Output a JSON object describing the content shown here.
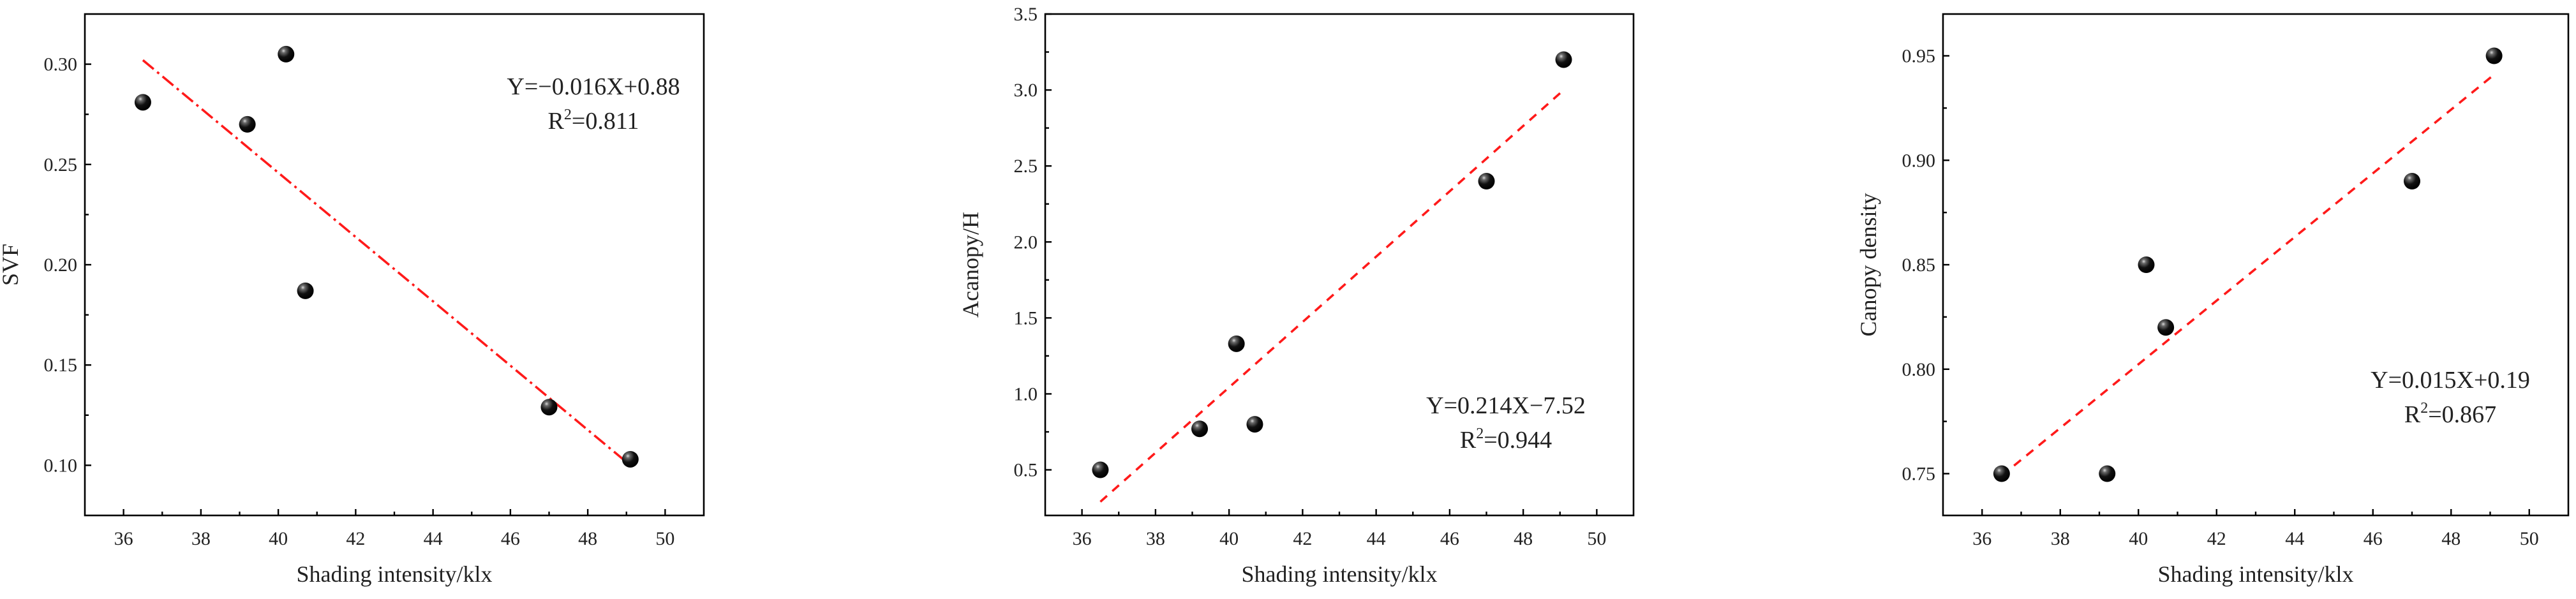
{
  "chart_data": [
    {
      "type": "scatter",
      "xlabel": "Shading intensity/klx",
      "ylabel": "SVF",
      "xlim": [
        35,
        51
      ],
      "ylim": [
        0.075,
        0.325
      ],
      "xticks": [
        36,
        38,
        40,
        42,
        44,
        46,
        48,
        50
      ],
      "yticks": [
        0.1,
        0.15,
        0.2,
        0.25,
        0.3
      ],
      "ytick_decimals": 2,
      "points": [
        {
          "x": 36.5,
          "y": 0.281
        },
        {
          "x": 39.2,
          "y": 0.27
        },
        {
          "x": 40.2,
          "y": 0.305
        },
        {
          "x": 40.7,
          "y": 0.187
        },
        {
          "x": 47.0,
          "y": 0.129
        },
        {
          "x": 49.1,
          "y": 0.103
        }
      ],
      "fit": {
        "x_start": 36.5,
        "x_end": 49.1,
        "y_start": 0.302,
        "y_end": 0.1,
        "style": "dash-dot"
      },
      "equation": "Y=−0.016X+0.88",
      "r2_prefix": "R",
      "r2_exp": "2",
      "r2_value": "=0.811",
      "annotation_position": "top-right"
    },
    {
      "type": "scatter",
      "xlabel": "Shading intensity/klx",
      "ylabel": "Acanopy/H",
      "xlim": [
        35,
        51
      ],
      "ylim": [
        0.2,
        3.5
      ],
      "xticks": [
        36,
        38,
        40,
        42,
        44,
        46,
        48,
        50
      ],
      "yticks": [
        0.5,
        1.0,
        1.5,
        2.0,
        2.5,
        3.0,
        3.5
      ],
      "ytick_decimals": 1,
      "points": [
        {
          "x": 36.5,
          "y": 0.5
        },
        {
          "x": 39.2,
          "y": 0.77
        },
        {
          "x": 40.2,
          "y": 1.33
        },
        {
          "x": 40.7,
          "y": 0.8
        },
        {
          "x": 47.0,
          "y": 2.4
        },
        {
          "x": 49.1,
          "y": 3.2
        }
      ],
      "fit": {
        "x_start": 36.5,
        "x_end": 49.1,
        "y_start": 0.29,
        "y_end": 3.0,
        "style": "dashed"
      },
      "equation": "Y=0.214X−7.52",
      "r2_prefix": "R",
      "r2_exp": "2",
      "r2_value": "=0.944",
      "annotation_position": "lower-right"
    },
    {
      "type": "scatter",
      "xlabel": "Shading intensity/klx",
      "ylabel": "Canopy density",
      "xlim": [
        35,
        51
      ],
      "ylim": [
        0.73,
        0.97
      ],
      "xticks": [
        36,
        38,
        40,
        42,
        44,
        46,
        48,
        50
      ],
      "yticks": [
        0.75,
        0.8,
        0.85,
        0.9,
        0.95
      ],
      "ytick_decimals": 2,
      "points": [
        {
          "x": 36.5,
          "y": 0.75
        },
        {
          "x": 39.2,
          "y": 0.75
        },
        {
          "x": 40.2,
          "y": 0.85
        },
        {
          "x": 40.7,
          "y": 0.82
        },
        {
          "x": 47.0,
          "y": 0.89
        },
        {
          "x": 49.1,
          "y": 0.95
        }
      ],
      "fit": {
        "x_start": 36.5,
        "x_end": 49.1,
        "y_start": 0.749,
        "y_end": 0.941,
        "style": "dashed"
      },
      "equation": "Y=0.015X+0.19",
      "r2_prefix": "R",
      "r2_exp": "2",
      "r2_value": "=0.867",
      "annotation_position": "lower-right"
    }
  ]
}
